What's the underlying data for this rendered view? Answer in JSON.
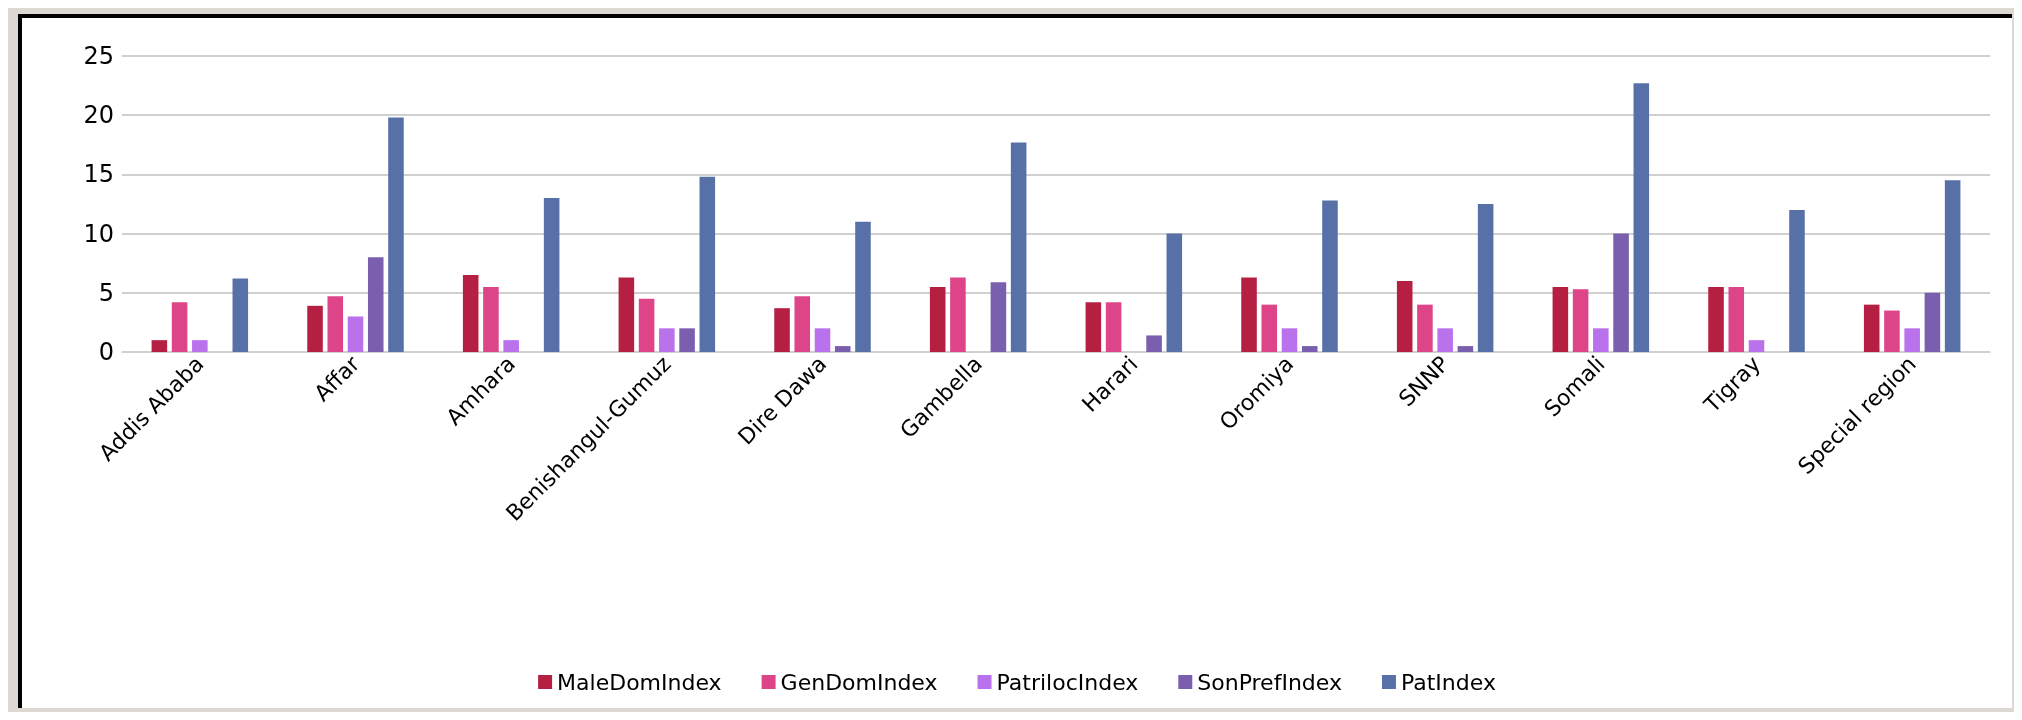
{
  "chart_data": {
    "type": "bar",
    "categories": [
      "Addis Ababa",
      "Affar",
      "Amhara",
      "Benishangul-Gumuz",
      "Dire Dawa",
      "Gambella",
      "Harari",
      "Oromiya",
      "SNNP",
      "Somali",
      "Tigray",
      "Special region"
    ],
    "series": [
      {
        "name": "MaleDomIndex",
        "color": "#b51f42",
        "values": [
          1,
          3.9,
          6.5,
          6.3,
          3.7,
          5.5,
          4.2,
          6.3,
          6,
          5.5,
          5.5,
          4
        ]
      },
      {
        "name": "GenDomIndex",
        "color": "#de4589",
        "values": [
          4.2,
          4.7,
          5.5,
          4.5,
          4.7,
          6.3,
          4.2,
          4,
          4,
          5.3,
          5.5,
          3.5
        ]
      },
      {
        "name": "PatrilocIndex",
        "color": "#ba72ec",
        "values": [
          1,
          3,
          1,
          2,
          2,
          null,
          null,
          2,
          2,
          2,
          1,
          2
        ]
      },
      {
        "name": "SonPrefIndex",
        "color": "#7a5fae",
        "values": [
          null,
          8,
          null,
          2,
          0.5,
          5.9,
          1.4,
          0.5,
          0.5,
          10,
          null,
          5
        ]
      },
      {
        "name": "PatIndex",
        "color": "#5870a8",
        "values": [
          6.2,
          19.8,
          13,
          14.8,
          11,
          17.7,
          10,
          12.8,
          12.5,
          22.7,
          12,
          14.5
        ]
      }
    ],
    "ylim": [
      0,
      25
    ],
    "yticks": [
      0,
      5,
      10,
      15,
      20,
      25
    ],
    "grid": "y",
    "legend": "bottom"
  }
}
